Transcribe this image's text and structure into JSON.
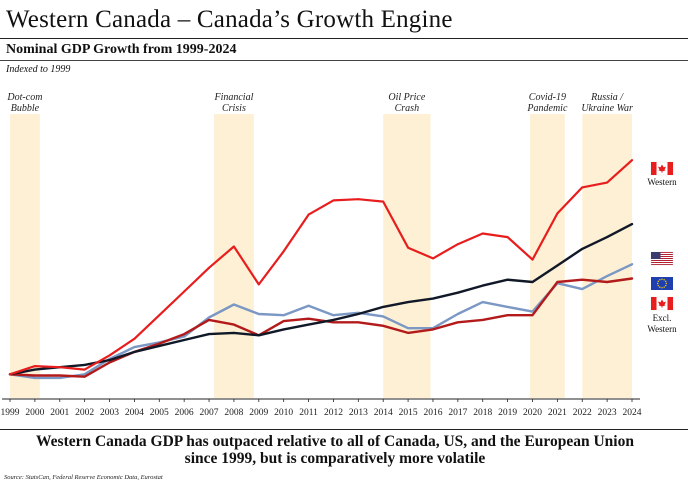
{
  "header": {
    "title": "Western Canada – Canada’s Growth Engine",
    "subtitle": "Nominal GDP Growth from 1999-2024",
    "indexed_note": "Indexed to 1999"
  },
  "footer": {
    "conclusion_line1": "Western Canada GDP has outpaced relative to all of Canada, US, and the European Union",
    "conclusion_line2": "since 1999, but is comparatively more volatile",
    "source": "Source: StatsCan, Federal Reserve Economic Data, Eurostat"
  },
  "colors": {
    "western": "#e81d1d",
    "us": "#111827",
    "eu": "#7b97c3",
    "excl_western": "#b31b1b",
    "shade": "#fdf0d5"
  },
  "chart_data": {
    "type": "line",
    "title": "Nominal GDP Growth from 1999-2024",
    "xlabel": "",
    "ylabel": "",
    "y_axis_shown": false,
    "grid": false,
    "x": [
      1999,
      2000,
      2001,
      2002,
      2003,
      2004,
      2005,
      2006,
      2007,
      2008,
      2009,
      2010,
      2011,
      2012,
      2013,
      2014,
      2015,
      2016,
      2017,
      2018,
      2019,
      2020,
      2021,
      2022,
      2023,
      2024
    ],
    "ylim": [
      0.8,
      3.2
    ],
    "series": [
      {
        "key": "western",
        "values": [
          1.0,
          1.07,
          1.06,
          1.04,
          1.16,
          1.3,
          1.5,
          1.7,
          1.9,
          2.08,
          1.76,
          2.04,
          2.35,
          2.47,
          2.48,
          2.46,
          2.07,
          1.98,
          2.1,
          2.19,
          2.16,
          1.97,
          2.36,
          2.58,
          2.62,
          2.81
        ]
      },
      {
        "key": "us",
        "values": [
          1.0,
          1.04,
          1.06,
          1.08,
          1.12,
          1.19,
          1.24,
          1.29,
          1.34,
          1.35,
          1.33,
          1.38,
          1.42,
          1.46,
          1.51,
          1.57,
          1.61,
          1.64,
          1.69,
          1.75,
          1.8,
          1.78,
          1.92,
          2.06,
          2.16,
          2.27
        ]
      },
      {
        "key": "eu",
        "values": [
          1.0,
          0.97,
          0.97,
          1.0,
          1.13,
          1.23,
          1.27,
          1.32,
          1.48,
          1.59,
          1.51,
          1.5,
          1.58,
          1.5,
          1.52,
          1.49,
          1.39,
          1.39,
          1.51,
          1.61,
          1.57,
          1.53,
          1.77,
          1.72,
          1.83,
          1.93
        ]
      },
      {
        "key": "excl_western",
        "values": [
          1.0,
          0.99,
          0.99,
          0.98,
          1.1,
          1.19,
          1.26,
          1.34,
          1.46,
          1.42,
          1.33,
          1.45,
          1.47,
          1.44,
          1.44,
          1.41,
          1.35,
          1.38,
          1.44,
          1.46,
          1.5,
          1.5,
          1.78,
          1.8,
          1.78,
          1.81
        ]
      }
    ],
    "events": [
      {
        "label_line1": "Dot-com",
        "label_line2": "Bubble",
        "start": 1999.0,
        "end": 2000.2
      },
      {
        "label_line1": "Financial",
        "label_line2": "Crisis",
        "start": 2007.2,
        "end": 2008.8
      },
      {
        "label_line1": "Oil Price",
        "label_line2": "Crash",
        "start": 2014.0,
        "end": 2015.9
      },
      {
        "label_line1": "Covid-19",
        "label_line2": "Pandemic",
        "start": 2019.9,
        "end": 2021.3
      },
      {
        "label_line1": "Russia /",
        "label_line2": "Ukraine War",
        "start": 2022.0,
        "end": 2024.0
      }
    ],
    "legend": [
      {
        "flag": "canada-flag-icon",
        "label": "Western",
        "series": "western"
      },
      {
        "flag": "us-flag-icon",
        "label": "",
        "series": "us"
      },
      {
        "flag": "eu-flag-icon",
        "label": "",
        "series": "eu"
      },
      {
        "flag": "canada-flag-icon",
        "label": "Excl. Western",
        "label_line1": "Excl.",
        "label_line2": "Western",
        "series": "excl_western"
      }
    ]
  }
}
